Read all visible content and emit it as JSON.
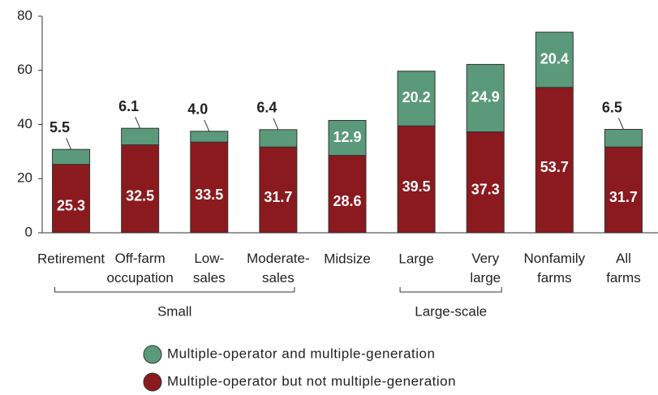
{
  "chart_data": {
    "type": "bar",
    "stacked": true,
    "categories": [
      "Retirement",
      "Off-farm\noccupation",
      "Low-\nsales",
      "Moderate-\nsales",
      "Midsize",
      "Large",
      "Very\nlarge",
      "Nonfamily\nfarms",
      "All\nfarms"
    ],
    "series": [
      {
        "name": "Multiple-operator but not multiple-generation",
        "color": "#8b1a1f",
        "values": [
          25.3,
          32.5,
          33.5,
          31.7,
          28.6,
          39.5,
          37.3,
          53.7,
          31.7
        ]
      },
      {
        "name": "Multiple-operator and multiple-generation",
        "color": "#5a9a7b",
        "values": [
          5.5,
          6.1,
          4.0,
          6.4,
          12.9,
          20.2,
          24.9,
          20.4,
          6.5
        ],
        "value_labels": [
          "5.5",
          "6.1",
          "4.0",
          "6.4",
          "12.9",
          "20.2",
          "24.9",
          "20.4",
          "6.5"
        ]
      }
    ],
    "groups": [
      {
        "label": "Small",
        "categories": [
          0,
          3
        ]
      },
      {
        "label": "Large-scale",
        "categories": [
          5,
          6
        ]
      }
    ],
    "ylim": [
      0,
      80
    ],
    "yticks": [
      0,
      20,
      40,
      60,
      80
    ]
  }
}
